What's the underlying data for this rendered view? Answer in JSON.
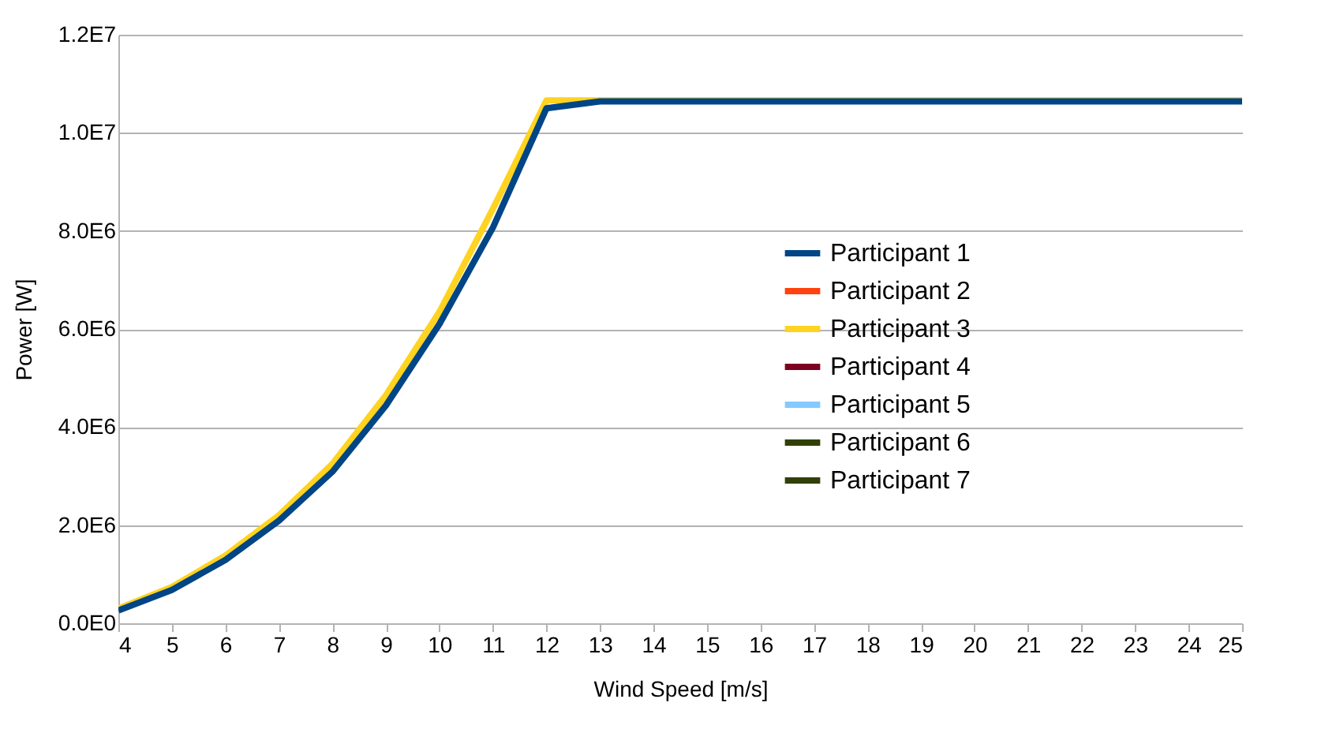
{
  "chart_data": {
    "type": "line",
    "xlabel": "Wind Speed [m/s]",
    "ylabel": "Power [W]",
    "x": [
      4,
      5,
      6,
      7,
      8,
      9,
      10,
      11,
      12,
      13,
      14,
      15,
      16,
      17,
      18,
      19,
      20,
      21,
      22,
      23,
      24,
      25
    ],
    "xlim": [
      4,
      25
    ],
    "xticks": [
      4,
      5,
      6,
      7,
      8,
      9,
      10,
      11,
      12,
      13,
      14,
      15,
      16,
      17,
      18,
      19,
      20,
      21,
      22,
      23,
      24,
      25
    ],
    "ylim": [
      0,
      12000000
    ],
    "yticks": [
      {
        "value": 0,
        "label": "0.0E0"
      },
      {
        "value": 2000000,
        "label": "2.0E6"
      },
      {
        "value": 4000000,
        "label": "4.0E6"
      },
      {
        "value": 6000000,
        "label": "6.0E6"
      },
      {
        "value": 8000000,
        "label": "8.0E6"
      },
      {
        "value": 10000000,
        "label": "1.0E7"
      },
      {
        "value": 12000000,
        "label": "1.2E7"
      }
    ],
    "grid": "y",
    "legend": "right",
    "line_style": "solid",
    "marker": "none",
    "series": [
      {
        "name": "Participant 1",
        "color": "#004586",
        "values": [
          260000,
          680000,
          1290000,
          2090000,
          3090000,
          4440000,
          6100000,
          8070000,
          10500000,
          10640000,
          10640000,
          10640000,
          10640000,
          10640000,
          10640000,
          10640000,
          10640000,
          10640000,
          10640000,
          10640000,
          10640000,
          10640000
        ]
      },
      {
        "name": "Participant 2",
        "color": "#ff420e",
        "values": [
          null,
          null,
          null,
          null,
          null,
          null,
          null,
          null,
          null,
          null,
          null,
          null,
          null,
          null,
          null,
          null,
          null,
          null,
          null,
          null,
          null,
          null
        ]
      },
      {
        "name": "Participant 3",
        "color": "#ffd320",
        "values": [
          300000,
          740000,
          1380000,
          2200000,
          3250000,
          4650000,
          6350000,
          8450000,
          10660000,
          10660000,
          10660000,
          10660000,
          10660000,
          10660000,
          10660000,
          10660000,
          10660000,
          10660000,
          10660000,
          10660000,
          10660000,
          10660000
        ]
      },
      {
        "name": "Participant 4",
        "color": "#7e0021",
        "values": [
          null,
          null,
          null,
          null,
          null,
          null,
          null,
          null,
          null,
          null,
          null,
          null,
          null,
          null,
          null,
          null,
          null,
          null,
          null,
          null,
          null,
          null
        ]
      },
      {
        "name": "Participant 5",
        "color": "#83caff",
        "values": [
          null,
          null,
          null,
          null,
          null,
          null,
          null,
          null,
          null,
          null,
          null,
          null,
          null,
          null,
          null,
          null,
          null,
          null,
          null,
          null,
          null,
          null
        ]
      },
      {
        "name": "Participant 6",
        "color": "#314004",
        "values": [
          null,
          null,
          null,
          null,
          null,
          null,
          null,
          null,
          null,
          null,
          null,
          null,
          null,
          null,
          null,
          null,
          null,
          null,
          null,
          null,
          null,
          null
        ]
      },
      {
        "name": "Participant 7",
        "color": "#314004",
        "values": [
          null,
          null,
          null,
          null,
          null,
          null,
          null,
          null,
          null,
          null,
          null,
          null,
          null,
          null,
          null,
          null,
          null,
          null,
          null,
          null,
          null,
          null
        ]
      }
    ]
  }
}
